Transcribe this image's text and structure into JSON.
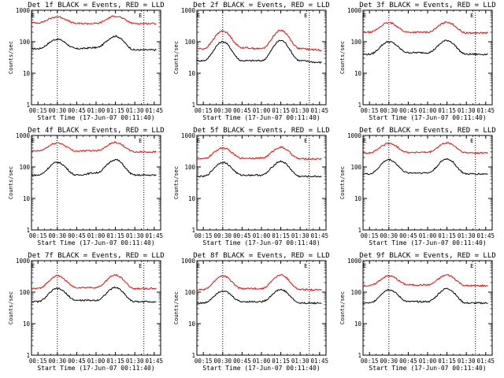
{
  "chart_data": {
    "type": "line",
    "panels": [
      {
        "title": "Det 1f BLACK = Events, RED = LLD",
        "series": [
          {
            "name": "Events",
            "color": "#000000",
            "x": [
              "00:15",
              "00:30",
              "00:45",
              "01:00",
              "01:15",
              "01:30",
              "01:45"
            ],
            "values": [
              60,
              120,
              60,
              65,
              150,
              55,
              55
            ]
          },
          {
            "name": "LLD",
            "color": "#ff0000",
            "x": [
              "00:15",
              "00:30",
              "00:45",
              "01:00",
              "01:15",
              "01:30",
              "01:45"
            ],
            "values": [
              400,
              620,
              380,
              380,
              650,
              380,
              380
            ]
          }
        ]
      },
      {
        "title": "Det 2f BLACK = Events, RED = LLD",
        "series": [
          {
            "name": "Events",
            "color": "#000000",
            "x": [
              "00:15",
              "00:30",
              "00:45",
              "01:00",
              "01:15",
              "01:30",
              "01:45"
            ],
            "values": [
              25,
              100,
              25,
              25,
              110,
              25,
              22
            ]
          },
          {
            "name": "LLD",
            "color": "#ff0000",
            "x": [
              "00:15",
              "00:30",
              "00:45",
              "01:00",
              "01:15",
              "01:30",
              "01:45"
            ],
            "values": [
              60,
              220,
              65,
              60,
              230,
              60,
              55
            ]
          }
        ]
      },
      {
        "title": "Det 3f BLACK = Events, RED = LLD",
        "series": [
          {
            "name": "Events",
            "color": "#000000",
            "x": [
              "00:15",
              "00:30",
              "00:45",
              "01:00",
              "01:15",
              "01:30",
              "01:45"
            ],
            "values": [
              40,
              100,
              45,
              45,
              110,
              40,
              40
            ]
          },
          {
            "name": "LLD",
            "color": "#ff0000",
            "x": [
              "00:15",
              "00:30",
              "00:45",
              "01:00",
              "01:15",
              "01:30",
              "01:45"
            ],
            "values": [
              200,
              400,
              200,
              200,
              420,
              190,
              190
            ]
          }
        ]
      },
      {
        "title": "Det 4f BLACK = Events, RED = LLD",
        "series": [
          {
            "name": "Events",
            "color": "#000000",
            "x": [
              "00:15",
              "00:30",
              "00:45",
              "01:00",
              "01:15",
              "01:30",
              "01:45"
            ],
            "values": [
              55,
              140,
              55,
              65,
              170,
              55,
              55
            ]
          },
          {
            "name": "LLD",
            "color": "#ff0000",
            "x": [
              "00:15",
              "00:30",
              "00:45",
              "01:00",
              "01:15",
              "01:30",
              "01:45"
            ],
            "values": [
              320,
              580,
              320,
              330,
              600,
              300,
              300
            ]
          }
        ]
      },
      {
        "title": "Det 5f BLACK = Events, RED = LLD",
        "series": [
          {
            "name": "Events",
            "color": "#000000",
            "x": [
              "00:15",
              "00:30",
              "00:45",
              "01:00",
              "01:15",
              "01:30",
              "01:45"
            ],
            "values": [
              50,
              140,
              55,
              55,
              150,
              50,
              50
            ]
          },
          {
            "name": "LLD",
            "color": "#ff0000",
            "x": [
              "00:15",
              "00:30",
              "00:45",
              "01:00",
              "01:15",
              "01:30",
              "01:45"
            ],
            "values": [
              180,
              400,
              190,
              190,
              420,
              180,
              180
            ]
          }
        ]
      },
      {
        "title": "Det 6f BLACK = Events, RED = LLD",
        "series": [
          {
            "name": "Events",
            "color": "#000000",
            "x": [
              "00:15",
              "00:30",
              "00:45",
              "01:00",
              "01:15",
              "01:30",
              "01:45"
            ],
            "values": [
              60,
              170,
              65,
              65,
              180,
              60,
              60
            ]
          },
          {
            "name": "LLD",
            "color": "#ff0000",
            "x": [
              "00:15",
              "00:30",
              "00:45",
              "01:00",
              "01:15",
              "01:30",
              "01:45"
            ],
            "values": [
              280,
              560,
              290,
              290,
              580,
              280,
              280
            ]
          }
        ]
      },
      {
        "title": "Det 7f BLACK = Events, RED = LLD",
        "series": [
          {
            "name": "Events",
            "color": "#000000",
            "x": [
              "00:15",
              "00:30",
              "00:45",
              "01:00",
              "01:15",
              "01:30",
              "01:45"
            ],
            "values": [
              50,
              130,
              55,
              55,
              140,
              50,
              50
            ]
          },
          {
            "name": "LLD",
            "color": "#ff0000",
            "x": [
              "00:15",
              "00:30",
              "00:45",
              "01:00",
              "01:15",
              "01:30",
              "01:45"
            ],
            "values": [
              130,
              330,
              140,
              140,
              350,
              130,
              130
            ]
          }
        ]
      },
      {
        "title": "Det 8f BLACK = Events, RED = LLD",
        "series": [
          {
            "name": "Events",
            "color": "#000000",
            "x": [
              "00:15",
              "00:30",
              "00:45",
              "01:00",
              "01:15",
              "01:30",
              "01:45"
            ],
            "values": [
              45,
              110,
              50,
              50,
              120,
              45,
              45
            ]
          },
          {
            "name": "LLD",
            "color": "#ff0000",
            "x": [
              "00:15",
              "00:30",
              "00:45",
              "01:00",
              "01:15",
              "01:30",
              "01:45"
            ],
            "values": [
              120,
              330,
              130,
              130,
              350,
              120,
              120
            ]
          }
        ]
      },
      {
        "title": "Det 9f BLACK = Events, RED = LLD",
        "series": [
          {
            "name": "Events",
            "color": "#000000",
            "x": [
              "00:15",
              "00:30",
              "00:45",
              "01:00",
              "01:15",
              "01:30",
              "01:45"
            ],
            "values": [
              45,
              120,
              50,
              50,
              130,
              45,
              45
            ]
          },
          {
            "name": "LLD",
            "color": "#ff0000",
            "x": [
              "00:15",
              "00:30",
              "00:45",
              "01:00",
              "01:15",
              "01:30",
              "01:45"
            ],
            "values": [
              160,
              330,
              170,
              170,
              350,
              160,
              160
            ]
          }
        ]
      }
    ],
    "xlabel": "Start Time (17-Jun-07 00:11:40)",
    "ylabel": "Counts/sec",
    "xticks": [
      "00:15",
      "00:30",
      "00:45",
      "01:00",
      "01:15",
      "01:30",
      "01:45"
    ],
    "yticks": [
      "1",
      "10",
      "100",
      "1000"
    ],
    "ylim": [
      1,
      1000
    ],
    "scale": "log",
    "annotations": [
      "E",
      "E"
    ]
  }
}
